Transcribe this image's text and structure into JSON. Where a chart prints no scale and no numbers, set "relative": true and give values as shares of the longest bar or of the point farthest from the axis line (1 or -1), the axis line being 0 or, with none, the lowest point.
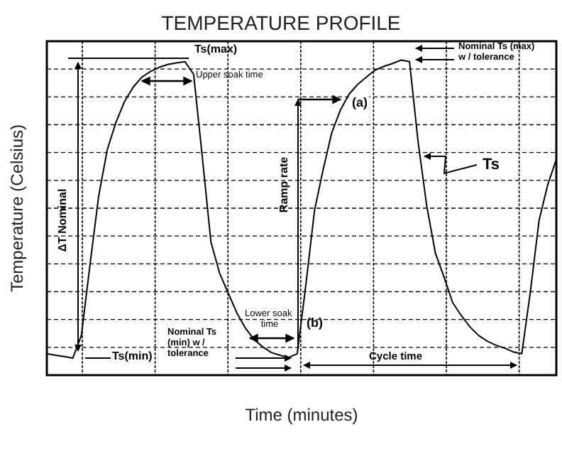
{
  "chart_data": {
    "type": "line",
    "title": "TEMPERATURE PROFILE",
    "xlabel": "Time (minutes)",
    "ylabel": "Temperature (Celsius)",
    "relative": true,
    "grid": true,
    "line_style": "solid",
    "categories": [
      null,
      null,
      null,
      null,
      null,
      null,
      null,
      null,
      null,
      null,
      null,
      null,
      null,
      null,
      null,
      null,
      null,
      null,
      null,
      null,
      null,
      null,
      null,
      null,
      null,
      null,
      null,
      null,
      null,
      null,
      null,
      null,
      null,
      null,
      null,
      null,
      null,
      null,
      null,
      null,
      null,
      null,
      null,
      null,
      null,
      null,
      null,
      null,
      null,
      null,
      null,
      null,
      null,
      null,
      null,
      null,
      null,
      null,
      null,
      null
    ],
    "series": [
      {
        "color": "#000000",
        "values": [
          0.068,
          0.063,
          0.059,
          0.054,
          0.126,
          0.351,
          0.568,
          0.716,
          0.802,
          0.869,
          0.914,
          0.946,
          0.964,
          0.977,
          0.986,
          0.991,
          0.995,
          0.955,
          0.694,
          0.423,
          0.324,
          0.261,
          0.198,
          0.149,
          0.113,
          0.09,
          0.072,
          0.063,
          0.056,
          0.068,
          0.288,
          0.523,
          0.653,
          0.77,
          0.842,
          0.892,
          0.923,
          0.946,
          0.968,
          0.98,
          0.989,
          1,
          0.995,
          0.739,
          0.536,
          0.387,
          0.311,
          0.23,
          0.189,
          0.153,
          0.126,
          0.108,
          0.095,
          0.086,
          0.074,
          0.068,
          0.266,
          0.491,
          0.604,
          0.685
        ]
      }
    ],
    "annotations": [
      "Ts(max)",
      "Upper soak time",
      "ΔT Nominal",
      "Ramp rate",
      "(a)",
      "Nominal Ts (max) w / tolerance",
      "Ts",
      "Lower soak time",
      "(b)",
      "Ts(min)",
      "Nominal Ts (min) w / tolerance",
      "Cycle time"
    ]
  }
}
